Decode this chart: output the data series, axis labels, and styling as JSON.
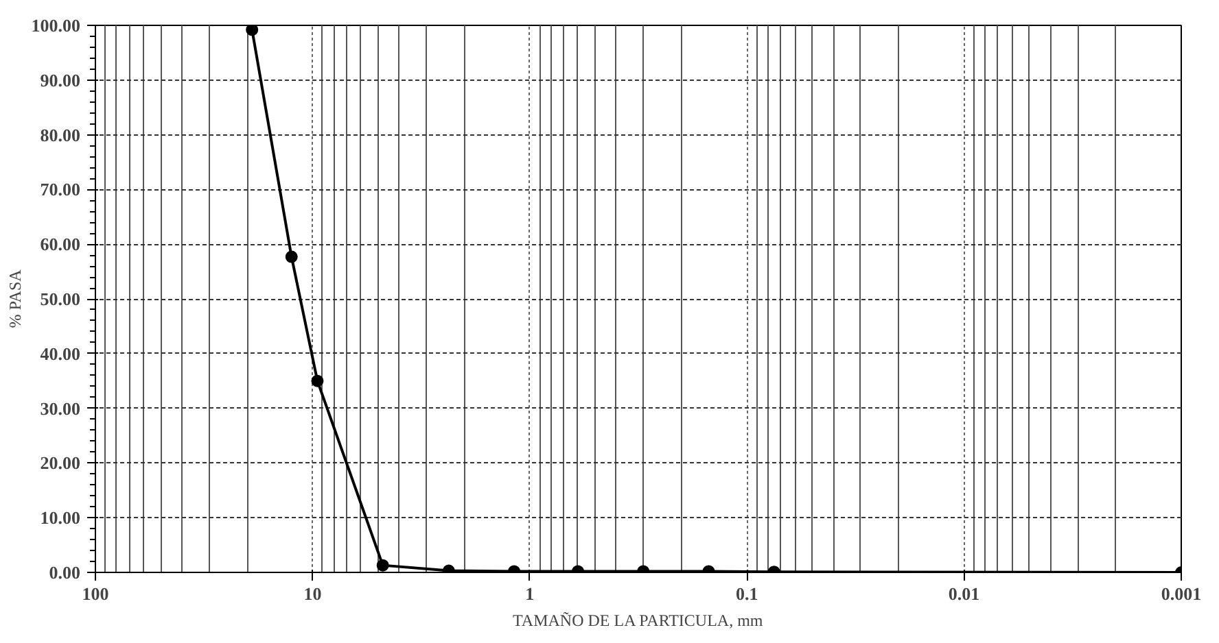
{
  "chart_data": {
    "type": "line",
    "xlabel": "TAMAÑO DE LA PARTICULA, mm",
    "ylabel": "% PASA",
    "x": [
      19,
      12.5,
      9.5,
      4.75,
      2.36,
      1.18,
      0.6,
      0.3,
      0.15,
      0.075,
      0.001
    ],
    "series": [
      {
        "color": "#000000",
        "values": [
          99.2,
          57.7,
          35.0,
          1.3,
          0.3,
          0.2,
          0.2,
          0.2,
          0.2,
          0.1,
          0.0
        ]
      }
    ],
    "log": "x",
    "xlim": [
      100,
      0.001
    ],
    "xticks": [
      100,
      10,
      1,
      0.1,
      0.01,
      0.001
    ],
    "ylim": [
      0,
      100
    ],
    "yticks": [
      {
        "value": 0,
        "label": "0.00"
      },
      {
        "value": 10,
        "label": "10.00"
      },
      {
        "value": 20,
        "label": "20.00"
      },
      {
        "value": 30,
        "label": "30.00"
      },
      {
        "value": 40,
        "label": "40.00"
      },
      {
        "value": 50,
        "label": "50.00"
      },
      {
        "value": 60,
        "label": "60.00"
      },
      {
        "value": 70,
        "label": "70.00"
      },
      {
        "value": 80,
        "label": "80.00"
      },
      {
        "value": 90,
        "label": "90.00"
      },
      {
        "value": 100,
        "label": "100.00"
      }
    ],
    "grid": true,
    "marker": "circle",
    "line_style": "solid"
  }
}
